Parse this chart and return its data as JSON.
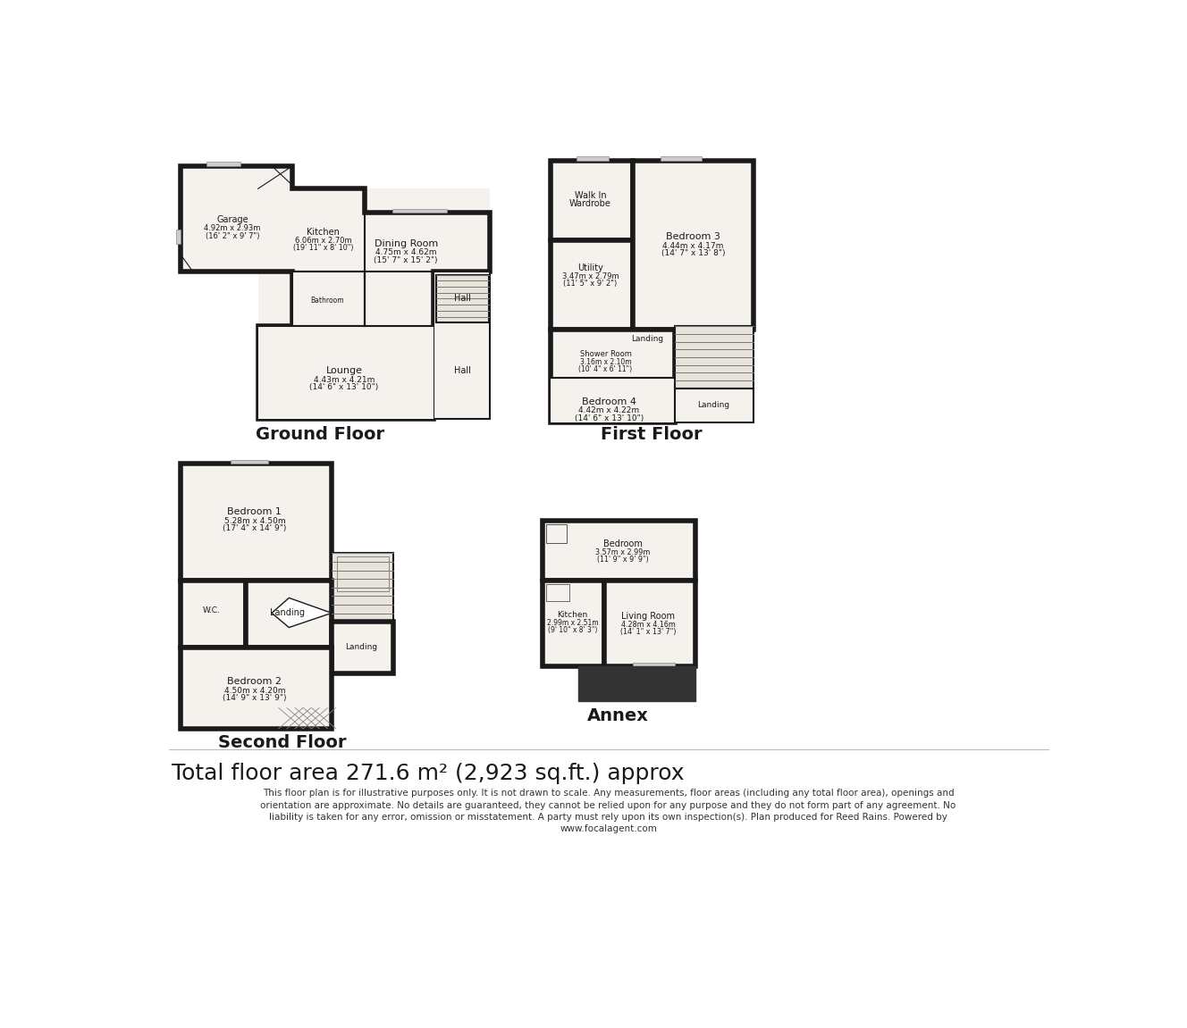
{
  "bg_color": "#ffffff",
  "wall_color": "#1a1a1a",
  "wall_lw": 4.0,
  "thin_lw": 1.0,
  "fill_color": "#f5f2ed",
  "stair_fill": "#e8e4dc",
  "dark_fill": "#333333",
  "title": "Total floor area 271.6 m² (2,923 sq.ft.) approx",
  "disclaimer_lines": [
    "This floor plan is for illustrative purposes only. It is not drawn to scale. Any measurements, floor areas (including any total floor area), openings and",
    "orientation are approximate. No details are guaranteed, they cannot be relied upon for any purpose and they do not form part of any agreement. No",
    "liability is taken for any error, omission or misstatement. A party must rely upon its own inspection(s). Plan produced for Reed Rains. Powered by",
    "www.focalagent.com"
  ],
  "ground_floor_label": "Ground Floor",
  "first_floor_label": "First Floor",
  "second_floor_label": "Second Floor",
  "annex_label": "Annex"
}
